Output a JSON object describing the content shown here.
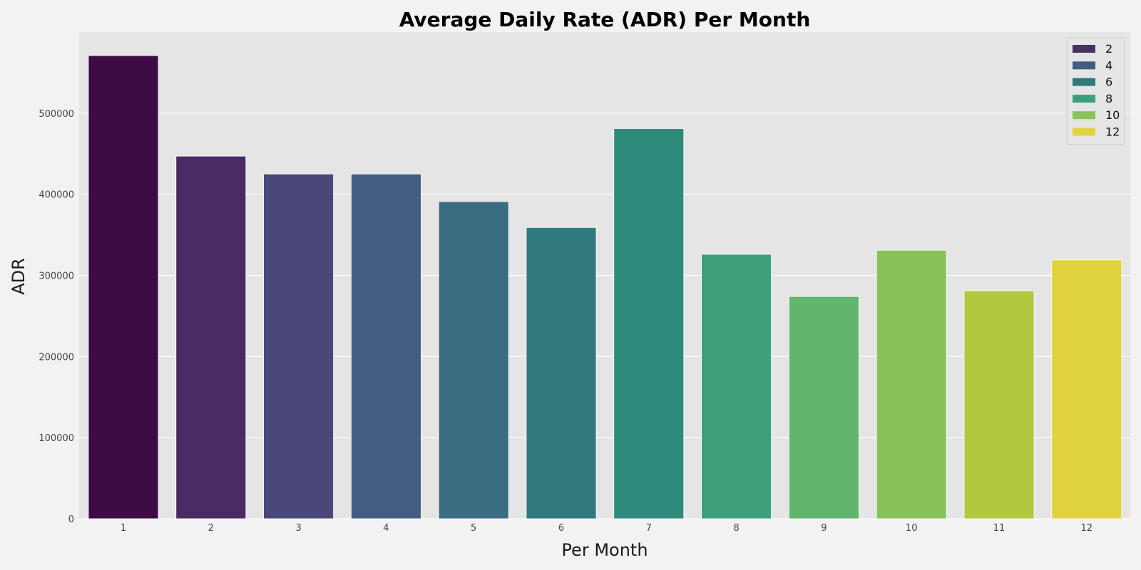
{
  "chart_data": {
    "type": "bar",
    "title": "Average Daily Rate (ADR) Per Month",
    "xlabel": "Per Month",
    "ylabel": "ADR",
    "categories": [
      "1",
      "2",
      "3",
      "4",
      "5",
      "6",
      "7",
      "8",
      "9",
      "10",
      "11",
      "12"
    ],
    "values": [
      571000,
      447000,
      425000,
      425000,
      391000,
      359000,
      481000,
      326000,
      274000,
      331000,
      281000,
      319000
    ],
    "colors": [
      "#3e0b44",
      "#4a2b63",
      "#4a477b",
      "#425c82",
      "#3a6c82",
      "#30797d",
      "#2e8a7b",
      "#3ea07a",
      "#62b56d",
      "#89c259",
      "#b1c83e",
      "#e0d33d"
    ],
    "ylim": [
      0,
      600000
    ],
    "yticks": [
      0,
      100000,
      200000,
      300000,
      400000,
      500000
    ],
    "ytick_labels": [
      "0",
      "100000",
      "200000",
      "300000",
      "400000",
      "500000"
    ],
    "grid": true,
    "legend": {
      "position": "top-right",
      "entries": [
        {
          "label": "2",
          "color": "#48325f"
        },
        {
          "label": "4",
          "color": "#425c82"
        },
        {
          "label": "6",
          "color": "#30797d"
        },
        {
          "label": "8",
          "color": "#3ea07a"
        },
        {
          "label": "10",
          "color": "#89c259"
        },
        {
          "label": "12",
          "color": "#e0d33d"
        }
      ]
    }
  }
}
